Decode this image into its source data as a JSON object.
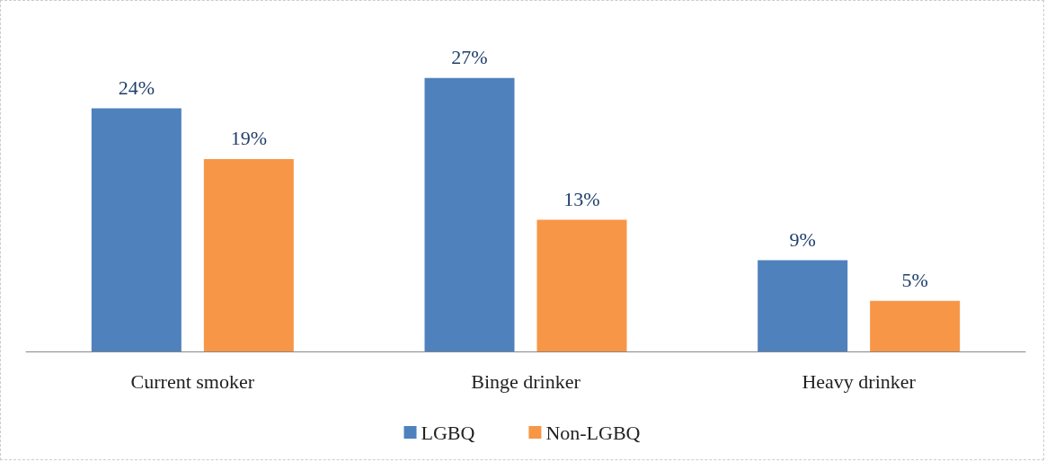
{
  "chart_data": {
    "type": "bar",
    "categories": [
      "Current smoker",
      "Binge drinker",
      "Heavy drinker"
    ],
    "series": [
      {
        "name": "LGBQ",
        "color": "#4f81bd",
        "values": [
          24,
          27,
          9
        ],
        "value_labels": [
          "24%",
          "27%",
          "9%"
        ]
      },
      {
        "name": "Non-LGBQ",
        "color": "#f79646",
        "values": [
          19,
          13,
          5
        ],
        "value_labels": [
          "19%",
          "13%",
          "5%"
        ]
      }
    ],
    "legend": "bottom"
  }
}
